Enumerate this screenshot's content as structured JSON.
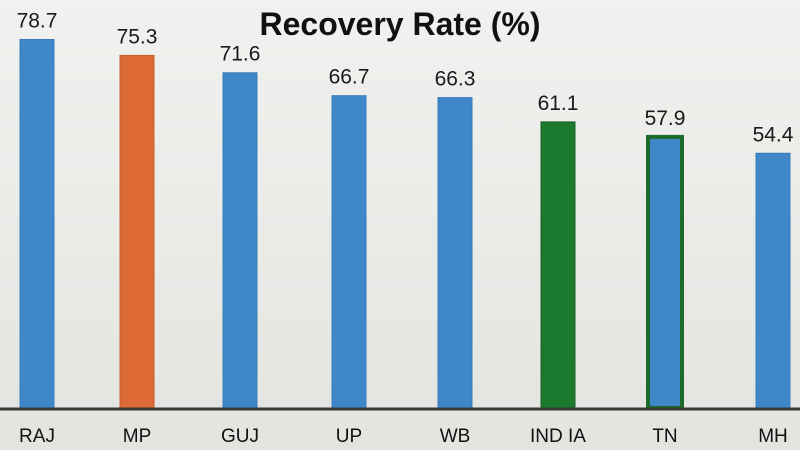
{
  "chart_data": {
    "type": "bar",
    "title": "Recovery Rate (%)",
    "xlabel": "",
    "ylabel": "",
    "grid": false,
    "legend": "none",
    "ylim": [
      0,
      85
    ],
    "categories": [
      "RAJ",
      "MP",
      "GUJ",
      "UP",
      "WB",
      "IND IA",
      "TN",
      "MH"
    ],
    "values": [
      78.7,
      75.3,
      71.6,
      66.7,
      66.3,
      61.1,
      57.9,
      54.4
    ],
    "value_labels": [
      "78.7",
      "75.3",
      "71.6",
      "66.7",
      "66.3",
      "61.1",
      "57.9",
      "54.4"
    ],
    "bar_colors": [
      "#3f87c9",
      "#dd6a34",
      "#3f87c9",
      "#3f87c9",
      "#3f87c9",
      "#1c7a2e",
      "#3f87c9",
      "#3f87c9"
    ],
    "bar_outline_colors": [
      "#3a7dba",
      "#c85e2c",
      "#3a7dba",
      "#3a7dba",
      "#3a7dba",
      "#176326",
      "#1d6b2a",
      "#3a7dba"
    ],
    "axis_color": "#3a3a3a"
  }
}
